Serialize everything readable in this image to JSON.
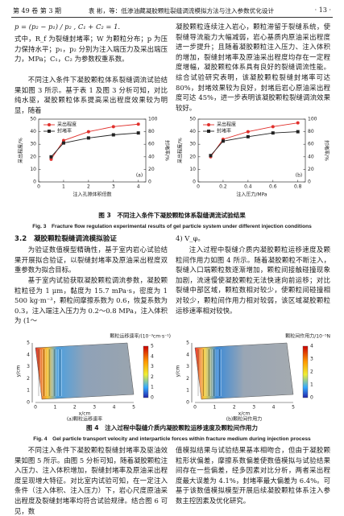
{
  "header": {
    "volume": "第 49 卷 第 3 期",
    "running_title": "袁 彬，等：低渗油藏凝胶颗粒裂缝调流模拟方法与注入参数优化设计",
    "page": "· 13 ·"
  },
  "body": {
    "formula": "p = (p₂ − p₁) / p₂ ,   C₁ + C₂ = 1.",
    "para1": "式中，R_f 为裂缝封堵率；W 为颗粒分布；p 为压力保持水平；p₁，p₂ 分别为注入端压力及采出端压力，MPa；C₁，C₂ 为参数权重系数。",
    "para2": "不同注入条件下凝胶颗粒体系裂缝调流试验结果如图 3 所示。基于表 1 及图 3 分析可知，对比纯水驱，凝胶颗粒体系提高采出程度效果较为明显，随着",
    "para3": "凝胶颗粒连续注入岩心，颗粒滞留于裂缝系统，使裂缝导流能力大幅减弱，岩心基质内原油采出程度进一步提升；且随着凝胶颗粒注入压力、注入体积的增加，裂缝封堵率及原油采出程度均存在一定程度增幅，凝胶颗粒体系具有良好的裂缝调流性能。综合试验研究表明，该凝胶颗粒裂缝封堵率可达 80%，封堵效果较为良好，封堵后岩心原油采出程度可达 45%，进一步表明该凝胶颗粒裂缝调流效果较好。",
    "section": "3.2　凝胶颗粒裂缝调流模拟验证",
    "para4": "为验证数值模型精确性，基于室内岩心试验结果开展拟合验证，以裂缝封堵率及原油采出程度双重参数为拟合目标。",
    "para5": "基于室内试验获取凝胶颗粒调流参数，凝胶颗粒粒径为 1 μm，黏度为 15.7 mPa·s，密度为 1 500 kg·m⁻³，颗粒间摩擦系数为 0.6，恢复系数为 0.3，注入端注入压力为 0.2～0.8 MPa，注入体积为 (1～",
    "para6": "4) V_φ。",
    "para7": "注入过程中裂缝介质内凝胶颗粒运移速度及颗粒间作用力如图 4 所示。随着凝胶颗粒不断注入，裂缝入口端颗粒数逐渐增加，颗粒间接触碰撞现象加剧，流速慢使凝胶颗粒无法快速向前运移；对比裂缝中部区域，颗粒数相对较少，使颗粒间碰撞相对较少，颗粒间作用力相对较弱，该区域凝胶颗粒运移速率相对较快。",
    "para8": "不同注入条件下凝胶颗粒裂缝封堵率及驱油效果如图 5 所示。由图 5 分析可知，随着凝胶颗粒注入压力、注入体积增加，裂缝封堵率及原油采出程度呈现增大特征。对比室内试验可知，在一定注入条件（注入体积、注入压力）下，岩心尺度原油采出程度及裂缝封堵率均符合试验规律。结合图 6 可见，数",
    "para9": "值模拟结果与试验结果基本相吻合，但由于凝胶颗粒形状偏差，摩擦系数偏差使数值模拟与试验结果间存在一些偏差，经多因素对比分析，两者采出程度最大误差为 4.1%，封堵率最大偏差为 6.4%。可基于该数值模拟模型开展后续凝胶颗粒体系注入参数主控因素及优化研究。"
  },
  "figure3": {
    "panels": [
      {
        "type": "line",
        "label": "(a)",
        "x_label": "注入孔隙体积倍数",
        "y_label": "采出程度/%",
        "y2_label": "封堵率/%",
        "legend": "upper left",
        "x": [
          0.5,
          1,
          2,
          3,
          4
        ],
        "xlim": [
          0,
          4.3
        ],
        "xticks": [
          0,
          1,
          2,
          3,
          4
        ],
        "ylim": [
          0,
          50
        ],
        "yticks": [
          0,
          10,
          20,
          30,
          40,
          50
        ],
        "y2lim": [
          0,
          100
        ],
        "y2ticks": [
          0,
          20,
          40,
          60,
          80,
          100
        ],
        "series": [
          {
            "name": "采出程度",
            "color": "#e0302c",
            "marker": "circle",
            "values": [
              18,
              33,
              40,
              44,
              46
            ]
          },
          {
            "name": "封堵率",
            "color": "#222222",
            "marker": "square",
            "axis": "y2",
            "values": [
              40,
              62,
              70,
              75,
              78
            ]
          }
        ]
      },
      {
        "type": "line",
        "label": "(b)",
        "x_label": "注入压力/MPa",
        "y_label": "采出程度/%",
        "y2_label": "封堵率/%",
        "legend": "upper left",
        "x": [
          0.1,
          0.2,
          0.4,
          0.6,
          0.8
        ],
        "xlim": [
          0,
          0.86
        ],
        "xticks": [
          0,
          0.2,
          0.4,
          0.6,
          0.8
        ],
        "ylim": [
          0,
          50
        ],
        "yticks": [
          0,
          10,
          20,
          30,
          40,
          50
        ],
        "y2lim": [
          0,
          100
        ],
        "y2ticks": [
          0,
          20,
          40,
          60,
          80,
          100
        ],
        "series": [
          {
            "name": "采出程度",
            "color": "#e0302c",
            "marker": "circle",
            "values": [
              20,
              34,
              40,
              44,
              47
            ]
          },
          {
            "name": "封堵率",
            "color": "#222222",
            "marker": "square",
            "axis": "y2",
            "values": [
              42,
              65,
              72,
              78,
              80
            ]
          }
        ]
      }
    ],
    "caption_cn": "图 3　不同注入条件下凝胶颗粒体系裂缝调流试验结果",
    "caption_en": "Fig. 3　Fracture flow regulation experimental results of gel particle system under different injection conditions"
  },
  "figure4": {
    "panels": [
      {
        "label": "(a)颗粒运移速率",
        "colorbar_title": "颗粒运移速率/(10⁻³cm·s⁻¹)",
        "colorbar_ticks": [
          5,
          4,
          3,
          2,
          1,
          0
        ],
        "x_label": "x/cm",
        "y_label": "y/cm",
        "xticks": [
          0,
          1,
          2,
          3,
          4,
          5
        ],
        "yticks": [
          0,
          1,
          2,
          3,
          4,
          5
        ]
      },
      {
        "label": "(b)颗粒间作用力",
        "colorbar_title": "颗粒间作用力/10⁻⁵N",
        "colorbar_ticks": [
          4,
          3,
          2,
          1,
          0
        ],
        "x_label": "x/cm",
        "y_label": "y/cm",
        "xticks": [
          0,
          1,
          2,
          3,
          4,
          5
        ],
        "yticks": [
          0,
          1,
          2,
          3,
          4,
          5
        ]
      }
    ],
    "caption_cn": "图 4　注入过程中裂缝介质内凝胶颗粒运移速度及颗粒间作用力",
    "caption_en": "Fig. 4　Gel particle transport velocity and interparticle forces within fracture medium during injection process"
  }
}
